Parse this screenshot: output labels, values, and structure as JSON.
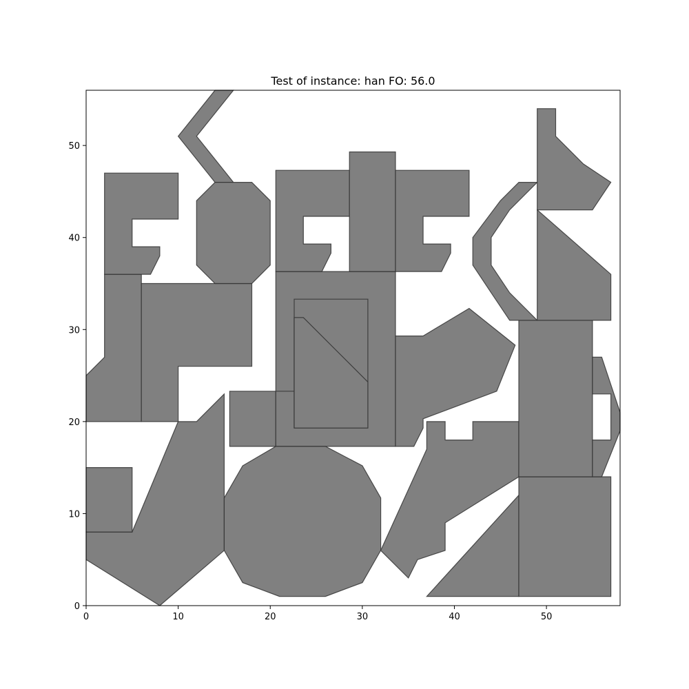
{
  "chart_data": {
    "type": "polygon-packing",
    "title": "Test of instance: han  FO: 56.0",
    "xlabel": "",
    "ylabel": "",
    "xlim": [
      0,
      58
    ],
    "ylim": [
      0,
      56
    ],
    "xticks": [
      0,
      10,
      20,
      30,
      40,
      50
    ],
    "yticks": [
      0,
      10,
      20,
      30,
      40,
      50
    ],
    "grid": false,
    "fill_color": "#808080",
    "edge_color": "#333333",
    "pieces": [
      {
        "name": "left-notch-rect",
        "points": [
          [
            0,
            5
          ],
          [
            8,
            0
          ],
          [
            15,
            6
          ],
          [
            15,
            11
          ],
          [
            15,
            23
          ],
          [
            12,
            20
          ],
          [
            10,
            20
          ],
          [
            5,
            8
          ],
          [
            0,
            8
          ]
        ]
      },
      {
        "name": "left-small-square",
        "points": [
          [
            0,
            8
          ],
          [
            5,
            8
          ],
          [
            5,
            15
          ],
          [
            0,
            15
          ]
        ]
      },
      {
        "name": "left-tall-strip",
        "points": [
          [
            0,
            20
          ],
          [
            6,
            20
          ],
          [
            6,
            36
          ],
          [
            2,
            36
          ],
          [
            2,
            27
          ],
          [
            0,
            25
          ]
        ]
      },
      {
        "name": "l-block",
        "points": [
          [
            6,
            20
          ],
          [
            10,
            20
          ],
          [
            10,
            26
          ],
          [
            18,
            26
          ],
          [
            18,
            35
          ],
          [
            6,
            35
          ]
        ]
      },
      {
        "name": "top-left-c",
        "points": [
          [
            2,
            36
          ],
          [
            7,
            36
          ],
          [
            8,
            38
          ],
          [
            8,
            39
          ],
          [
            5,
            39
          ],
          [
            5,
            42
          ],
          [
            10,
            42
          ],
          [
            10,
            47
          ],
          [
            2,
            47
          ]
        ]
      },
      {
        "name": "zigzag",
        "points": [
          [
            14,
            56
          ],
          [
            16,
            56
          ],
          [
            12,
            51
          ],
          [
            16,
            46
          ],
          [
            14,
            46
          ],
          [
            10,
            51
          ]
        ]
      },
      {
        "name": "octagon",
        "points": [
          [
            14,
            35
          ],
          [
            18,
            35
          ],
          [
            20,
            37
          ],
          [
            20,
            44
          ],
          [
            18,
            46
          ],
          [
            14,
            46
          ],
          [
            12,
            44
          ],
          [
            12,
            37
          ]
        ]
      },
      {
        "name": "small-square-mid",
        "points": [
          [
            15.6,
            17.3
          ],
          [
            20.6,
            17.3
          ],
          [
            20.6,
            23.3
          ],
          [
            15.6,
            23.3
          ]
        ]
      },
      {
        "name": "big-frame",
        "points": [
          [
            20.6,
            17.3
          ],
          [
            33.6,
            17.3
          ],
          [
            33.6,
            36.3
          ],
          [
            20.6,
            36.3
          ],
          [
            20.6,
            23.3
          ],
          [
            22.6,
            23.3
          ],
          [
            22.6,
            19.3
          ],
          [
            30.6,
            19.3
          ],
          [
            30.6,
            33.3
          ],
          [
            22.6,
            33.3
          ],
          [
            22.6,
            23.3
          ],
          [
            20.6,
            23.3
          ]
        ]
      },
      {
        "name": "frame-triangle",
        "points": [
          [
            22.6,
            19.3
          ],
          [
            30.6,
            19.3
          ],
          [
            30.6,
            24.3
          ],
          [
            23.6,
            31.3
          ],
          [
            22.6,
            31.3
          ]
        ]
      },
      {
        "name": "c-shape-mid",
        "points": [
          [
            20.6,
            36.3
          ],
          [
            25.6,
            36.3
          ],
          [
            26.6,
            38.3
          ],
          [
            26.6,
            39.3
          ],
          [
            23.6,
            39.3
          ],
          [
            23.6,
            42.3
          ],
          [
            28.6,
            42.3
          ],
          [
            28.6,
            47.3
          ],
          [
            20.6,
            47.3
          ]
        ]
      },
      {
        "name": "tall-rect-mid",
        "points": [
          [
            28.6,
            36.3
          ],
          [
            33.6,
            36.3
          ],
          [
            33.6,
            49.3
          ],
          [
            28.6,
            49.3
          ]
        ]
      },
      {
        "name": "c-shape-right",
        "points": [
          [
            33.6,
            36.3
          ],
          [
            38.6,
            36.3
          ],
          [
            39.6,
            38.3
          ],
          [
            39.6,
            39.3
          ],
          [
            36.6,
            39.3
          ],
          [
            36.6,
            42.3
          ],
          [
            41.6,
            42.3
          ],
          [
            41.6,
            47.3
          ],
          [
            33.6,
            47.3
          ]
        ]
      },
      {
        "name": "dodecagon",
        "points": [
          [
            21,
            1
          ],
          [
            26,
            1
          ],
          [
            30,
            2.5
          ],
          [
            32,
            6
          ],
          [
            32,
            11.7
          ],
          [
            30,
            15.2
          ],
          [
            26,
            17.3
          ],
          [
            20.6,
            17.3
          ],
          [
            17,
            15.2
          ],
          [
            15,
            11.7
          ],
          [
            15,
            6
          ],
          [
            17,
            2.5
          ]
        ]
      },
      {
        "name": "arrow-piece",
        "points": [
          [
            33.6,
            17.3
          ],
          [
            35.6,
            17.3
          ],
          [
            36.6,
            19.3
          ],
          [
            36.6,
            20.3
          ],
          [
            44.6,
            23.3
          ],
          [
            46.6,
            28.3
          ],
          [
            41.6,
            32.3
          ],
          [
            36.6,
            29.3
          ],
          [
            33.6,
            29.3
          ]
        ]
      },
      {
        "name": "bottom-zigzag",
        "points": [
          [
            32,
            6
          ],
          [
            35,
            3
          ],
          [
            36,
            5
          ],
          [
            39,
            6
          ],
          [
            39,
            9
          ],
          [
            47,
            14
          ],
          [
            47,
            20
          ],
          [
            42,
            20
          ],
          [
            42,
            18
          ],
          [
            39,
            18
          ],
          [
            39,
            20
          ],
          [
            37,
            20
          ],
          [
            37,
            17
          ]
        ]
      },
      {
        "name": "bottom-triangle",
        "points": [
          [
            37,
            1
          ],
          [
            47,
            1
          ],
          [
            47,
            12
          ]
        ]
      },
      {
        "name": "bottom-right-rect",
        "points": [
          [
            47,
            1
          ],
          [
            57,
            1
          ],
          [
            57,
            14
          ],
          [
            47,
            14
          ]
        ]
      },
      {
        "name": "mid-right-rect",
        "points": [
          [
            47,
            14
          ],
          [
            55,
            14
          ],
          [
            55,
            31
          ],
          [
            47,
            31
          ]
        ]
      },
      {
        "name": "right-edge-frame",
        "points": [
          [
            55,
            14
          ],
          [
            56,
            14
          ],
          [
            58,
            19
          ],
          [
            58,
            21
          ],
          [
            56,
            27
          ],
          [
            55,
            27
          ],
          [
            55,
            23
          ],
          [
            57,
            23
          ],
          [
            57,
            18
          ],
          [
            55,
            18
          ]
        ]
      },
      {
        "name": "crescent",
        "points": [
          [
            46,
            31
          ],
          [
            49,
            31
          ],
          [
            46,
            34
          ],
          [
            44,
            37
          ],
          [
            44,
            40
          ],
          [
            46,
            43
          ],
          [
            49,
            46
          ],
          [
            47,
            46
          ],
          [
            45,
            44
          ],
          [
            42,
            40
          ],
          [
            42,
            37
          ],
          [
            44,
            34
          ]
        ]
      },
      {
        "name": "right-triangle-top",
        "points": [
          [
            49,
            31
          ],
          [
            57,
            31
          ],
          [
            57,
            36
          ],
          [
            49,
            43
          ]
        ]
      },
      {
        "name": "top-right-flag",
        "points": [
          [
            49,
            43
          ],
          [
            55,
            43
          ],
          [
            57,
            46
          ],
          [
            54,
            48
          ],
          [
            51,
            51
          ],
          [
            51,
            54
          ],
          [
            49,
            54
          ]
        ]
      }
    ]
  }
}
